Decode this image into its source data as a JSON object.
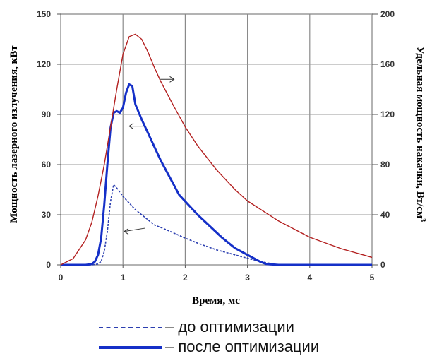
{
  "chart_data": {
    "type": "line",
    "xlabel": "Время, мс",
    "ylabel_left": "Мощность лазерного излучения, кВт",
    "ylabel_right": "Удельная мощность накачки, Вт/см",
    "ylabel_right_sup": "3",
    "xlim": [
      0,
      5
    ],
    "ylim_left": [
      0,
      150
    ],
    "ylim_right": [
      0,
      200
    ],
    "x_ticks": [
      "0",
      "1",
      "2",
      "3",
      "4",
      "5"
    ],
    "y_ticks_left": [
      "0",
      "30",
      "60",
      "90",
      "120",
      "150"
    ],
    "y_ticks_right": [
      "0",
      "40",
      "80",
      "120",
      "160",
      "200"
    ],
    "grid": true,
    "series": [
      {
        "name": "до оптимизации",
        "axis": "left",
        "style": "dashed",
        "color": "#2c3fb0",
        "x": [
          0,
          0.5,
          0.6,
          0.65,
          0.7,
          0.75,
          0.8,
          0.85,
          0.9,
          1.0,
          1.1,
          1.2,
          1.3,
          1.5,
          1.7,
          2.0,
          2.2,
          2.5,
          2.8,
          3.0,
          3.2,
          3.5
        ],
        "y": [
          0,
          0,
          0.5,
          2,
          8,
          20,
          38,
          48,
          46,
          41,
          37,
          33,
          30,
          24,
          21,
          16,
          13,
          9,
          6,
          4,
          2,
          0
        ]
      },
      {
        "name": "после оптимизации",
        "axis": "left",
        "style": "solid",
        "color": "#1530c8",
        "x": [
          0,
          0.4,
          0.5,
          0.55,
          0.6,
          0.65,
          0.7,
          0.75,
          0.8,
          0.85,
          0.9,
          0.95,
          1.0,
          1.05,
          1.1,
          1.15,
          1.2,
          1.3,
          1.4,
          1.5,
          1.6,
          1.7,
          1.8,
          1.9,
          2.0,
          2.2,
          2.4,
          2.6,
          2.8,
          3.0,
          3.2,
          3.3,
          3.5,
          4.0,
          4.5,
          5.0
        ],
        "y": [
          0,
          0,
          0.5,
          2,
          6,
          16,
          36,
          60,
          82,
          91,
          92,
          91,
          94,
          103,
          108,
          107,
          96,
          87,
          79,
          71,
          63,
          56,
          49,
          42,
          38,
          30,
          23,
          16,
          10,
          6,
          2,
          0.5,
          0,
          0,
          0,
          0
        ]
      },
      {
        "name": "",
        "axis": "right",
        "style": "solid",
        "color": "#b32020",
        "x": [
          0,
          0.2,
          0.4,
          0.5,
          0.6,
          0.7,
          0.8,
          0.9,
          1.0,
          1.1,
          1.2,
          1.3,
          1.4,
          1.5,
          1.6,
          1.8,
          2.0,
          2.2,
          2.5,
          2.8,
          3.0,
          3.5,
          4.0,
          4.5,
          5.0
        ],
        "y": [
          0,
          5,
          20,
          34,
          55,
          80,
          110,
          140,
          168,
          182,
          184,
          180,
          170,
          158,
          147,
          128,
          110,
          95,
          76,
          60,
          51,
          35,
          22,
          13,
          6
        ]
      }
    ]
  },
  "legend": {
    "dashed_label": "– до оптимизации",
    "solid_label": "– после оптимизации"
  }
}
